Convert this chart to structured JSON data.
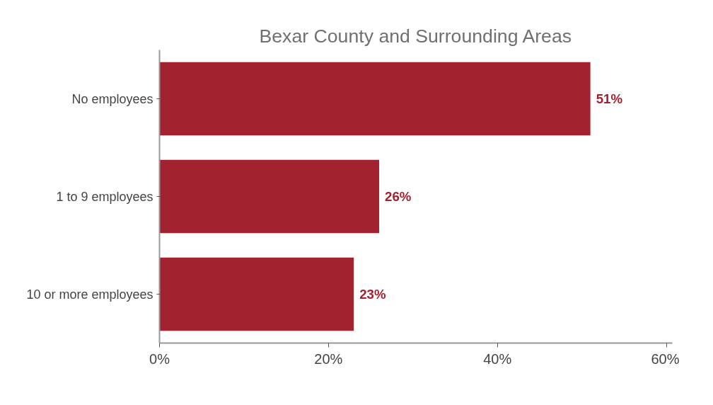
{
  "chart_data": {
    "type": "bar",
    "orientation": "horizontal",
    "title": "Bexar County and Surrounding Areas",
    "categories": [
      "No employees",
      "1 to 9 employees",
      "10 or more employees"
    ],
    "values": [
      51,
      26,
      23
    ],
    "color": "#a2222f",
    "value_labels": [
      "51%",
      "26%",
      "23%"
    ],
    "xlim": [
      0,
      60.7
    ],
    "xticks": [
      {
        "value": 0,
        "label": "0%"
      },
      {
        "value": 20,
        "label": "20%"
      },
      {
        "value": 40,
        "label": "40%"
      },
      {
        "value": 60,
        "label": "60%"
      }
    ],
    "grid": false
  }
}
